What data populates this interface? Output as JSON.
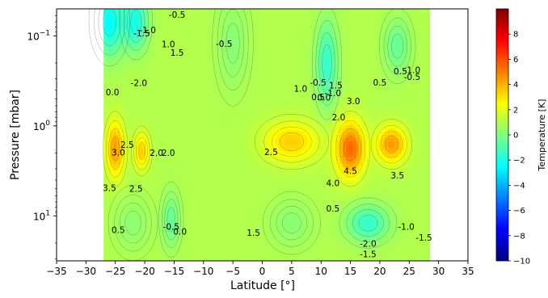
{
  "chart_data": {
    "type": "heatmap",
    "title": "",
    "xlabel": "Latitude [°]",
    "ylabel": "Pressure [mbar]",
    "xlim": [
      -35,
      35
    ],
    "ylim_log10": [
      -1.3,
      1.5
    ],
    "y_scale": "log",
    "y_inverted": true,
    "data_extent_x": [
      -27,
      28.5
    ],
    "x_ticks": [
      -35,
      -30,
      -25,
      -20,
      -15,
      -10,
      -5,
      0,
      5,
      10,
      15,
      20,
      25,
      30,
      35
    ],
    "x_tick_labels": [
      "−35",
      "−30",
      "−25",
      "−20",
      "−15",
      "−10",
      "−5",
      "0",
      "5",
      "10",
      "15",
      "20",
      "25",
      "30",
      "35"
    ],
    "y_ticks": [
      {
        "value": 0.1,
        "base": "10",
        "exp": "−1"
      },
      {
        "value": 1,
        "base": "10",
        "exp": "0"
      },
      {
        "value": 10,
        "base": "10",
        "exp": "1"
      }
    ],
    "colorbar": {
      "label": "Temperature [K]",
      "range": [
        -10,
        10
      ],
      "ticks": [
        8,
        6,
        4,
        2,
        0,
        -2,
        -4,
        -6,
        -8,
        -10
      ],
      "tick_labels": [
        "8",
        "6",
        "4",
        "2",
        "0",
        "−2",
        "−4",
        "−6",
        "−8",
        "−10"
      ],
      "colormap": [
        "#00007f",
        "#0000ff",
        "#007fff",
        "#00ffff",
        "#7fff7f",
        "#ffff00",
        "#ff7f00",
        "#ff0000",
        "#7f0000"
      ]
    },
    "features": [
      {
        "lat": -26,
        "p": 0.07,
        "value": -3.5,
        "rx": 2.5,
        "ry": 0.35
      },
      {
        "lat": -21.5,
        "p": 0.07,
        "value": -3.0,
        "rx": 2.0,
        "ry": 0.3
      },
      {
        "lat": -25,
        "p": 1.8,
        "value": 3.5,
        "rx": 1.5,
        "ry": 0.3
      },
      {
        "lat": -20.5,
        "p": 1.9,
        "value": 2.5,
        "rx": 1.3,
        "ry": 0.2
      },
      {
        "lat": 11,
        "p": 0.2,
        "value": -2.5,
        "rx": 1.8,
        "ry": 0.45
      },
      {
        "lat": 15,
        "p": 1.8,
        "value": 4.5,
        "rx": 2.4,
        "ry": 0.3
      },
      {
        "lat": 22,
        "p": 1.6,
        "value": 3.5,
        "rx": 2.5,
        "ry": 0.2
      },
      {
        "lat": 5,
        "p": 1.5,
        "value": 2.5,
        "rx": 4.5,
        "ry": 0.22
      },
      {
        "lat": 18,
        "p": 12,
        "value": -2.5,
        "rx": 3.5,
        "ry": 0.2
      },
      {
        "lat": -15.5,
        "p": 11,
        "value": -1.5,
        "rx": 1.5,
        "ry": 0.3
      },
      {
        "lat": 23,
        "p": 0.13,
        "value": -1.5,
        "rx": 2.2,
        "ry": 0.3
      },
      {
        "lat": -5,
        "p": 0.12,
        "value": -0.8,
        "rx": 2.5,
        "ry": 0.5
      },
      {
        "lat": 5,
        "p": 12,
        "value": -0.8,
        "rx": 3.5,
        "ry": 0.25
      },
      {
        "lat": -22,
        "p": 12,
        "value": -0.7,
        "rx": 3.0,
        "ry": 0.3
      }
    ],
    "contour_labels": [
      {
        "text": "-0.5",
        "lat": -14.5,
        "p": 0.058
      },
      {
        "text": "-1.0",
        "lat": -19.5,
        "p": 0.086
      },
      {
        "text": "-1.5",
        "lat": -20.5,
        "p": 0.093
      },
      {
        "text": "1.0",
        "lat": -16,
        "p": 0.123
      },
      {
        "text": "1.5",
        "lat": -14.5,
        "p": 0.153
      },
      {
        "text": "-0.5",
        "lat": -6.5,
        "p": 0.122
      },
      {
        "text": "-2.0",
        "lat": -21,
        "p": 0.331
      },
      {
        "text": "0.0",
        "lat": -25.5,
        "p": 0.42
      },
      {
        "text": "1.0",
        "lat": 6.5,
        "p": 0.385
      },
      {
        "text": "-0.5",
        "lat": 9.5,
        "p": 0.328
      },
      {
        "text": "1.5",
        "lat": 12.5,
        "p": 0.355
      },
      {
        "text": "-1.0",
        "lat": 12,
        "p": 0.428
      },
      {
        "text": "0.5",
        "lat": 9.5,
        "p": 0.475
      },
      {
        "text": "0.0",
        "lat": 10.5,
        "p": 0.48
      },
      {
        "text": "3.0",
        "lat": 15.5,
        "p": 0.53
      },
      {
        "text": "0.5",
        "lat": 20,
        "p": 0.33
      },
      {
        "text": "0.5",
        "lat": 23.5,
        "p": 0.245
      },
      {
        "text": "-1.0",
        "lat": 25.5,
        "p": 0.239
      },
      {
        "text": "-0.5",
        "lat": 25.5,
        "p": 0.285
      },
      {
        "text": "2.0",
        "lat": 13,
        "p": 0.797
      },
      {
        "text": "2.5",
        "lat": -23,
        "p": 1.62
      },
      {
        "text": "3.0",
        "lat": -24.5,
        "p": 1.96
      },
      {
        "text": "2.0",
        "lat": -18,
        "p": 1.98
      },
      {
        "text": "2.0",
        "lat": -16,
        "p": 1.98
      },
      {
        "text": "2.5",
        "lat": 1.5,
        "p": 1.95
      },
      {
        "text": "4.5",
        "lat": 15,
        "p": 3.17
      },
      {
        "text": "4.0",
        "lat": 12,
        "p": 4.29
      },
      {
        "text": "3.5",
        "lat": 23,
        "p": 3.54
      },
      {
        "text": "3.5",
        "lat": -26,
        "p": 4.87
      },
      {
        "text": "2.5",
        "lat": -21.5,
        "p": 4.95
      },
      {
        "text": "0.5",
        "lat": 12,
        "p": 8.25
      },
      {
        "text": "0.5",
        "lat": -24.5,
        "p": 14.2
      },
      {
        "text": "-0.5",
        "lat": -15.5,
        "p": 13.1
      },
      {
        "text": "0.0",
        "lat": -14,
        "p": 14.8
      },
      {
        "text": "1.5",
        "lat": -1.5,
        "p": 15.3
      },
      {
        "text": "-1.0",
        "lat": 24.5,
        "p": 13.1
      },
      {
        "text": "-1.5",
        "lat": 27.5,
        "p": 17.4
      },
      {
        "text": "-2.0",
        "lat": 18,
        "p": 20.2
      },
      {
        "text": "-1.5",
        "lat": 18,
        "p": 26.6
      }
    ]
  }
}
